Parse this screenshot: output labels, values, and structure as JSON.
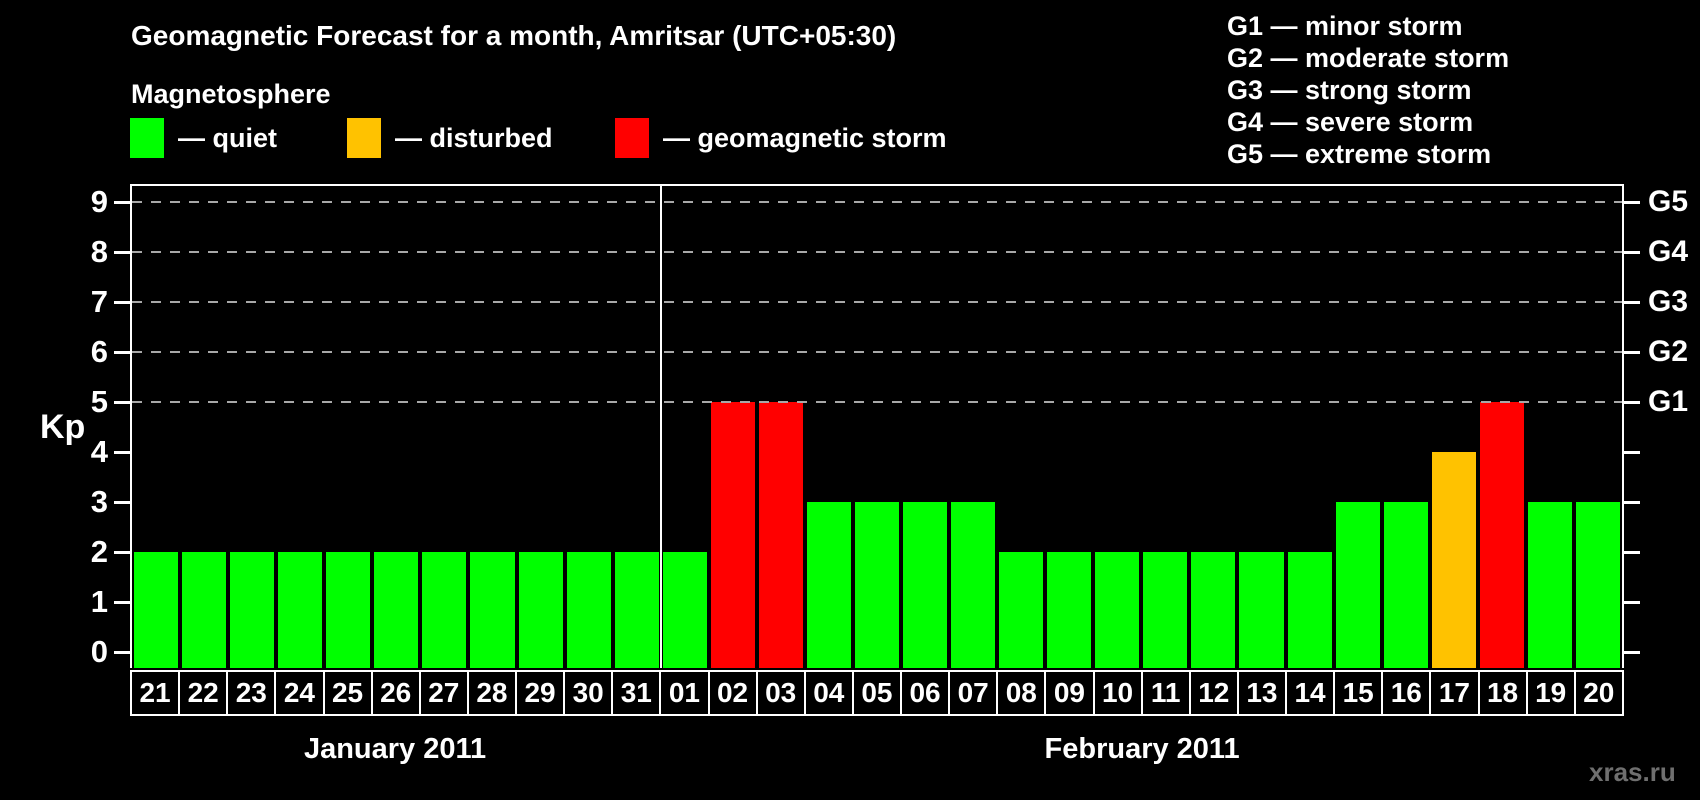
{
  "title": "Geomagnetic Forecast for a month, Amritsar (UTC+05:30)",
  "legend": {
    "heading": "Magnetosphere",
    "items": [
      {
        "label": "— quiet",
        "color": "#00ff00"
      },
      {
        "label": "— disturbed",
        "color": "#ffc200"
      },
      {
        "label": "— geomagnetic storm",
        "color": "#ff0000"
      }
    ]
  },
  "storm_legend": [
    "G1 — minor storm",
    "G2 — moderate storm",
    "G3 — strong storm",
    "G4 — severe storm",
    "G5 — extreme storm"
  ],
  "watermark": "xras.ru",
  "chart_data": {
    "type": "bar",
    "title": "Geomagnetic Forecast for a month, Amritsar (UTC+05:30)",
    "ylabel": "Kp",
    "ylim": [
      0,
      9
    ],
    "yticks": [
      0,
      1,
      2,
      3,
      4,
      5,
      6,
      7,
      8,
      9
    ],
    "gridlines": [
      5,
      6,
      7,
      8,
      9
    ],
    "grid": "dashed horizontal lines at Kp 5-9 only",
    "legend_position": "top",
    "right_axis": [
      {
        "kp": 5,
        "label": "G1"
      },
      {
        "kp": 6,
        "label": "G2"
      },
      {
        "kp": 7,
        "label": "G3"
      },
      {
        "kp": 8,
        "label": "G4"
      },
      {
        "kp": 9,
        "label": "G5"
      }
    ],
    "months": [
      {
        "label": "January 2011",
        "days": 11
      },
      {
        "label": "February 2011",
        "days": 20
      }
    ],
    "status_colors": {
      "quiet": "#00ff00",
      "disturbed": "#ffc200",
      "storm": "#ff0000"
    },
    "days": [
      {
        "day": "21",
        "kp": 2,
        "status": "quiet"
      },
      {
        "day": "22",
        "kp": 2,
        "status": "quiet"
      },
      {
        "day": "23",
        "kp": 2,
        "status": "quiet"
      },
      {
        "day": "24",
        "kp": 2,
        "status": "quiet"
      },
      {
        "day": "25",
        "kp": 2,
        "status": "quiet"
      },
      {
        "day": "26",
        "kp": 2,
        "status": "quiet"
      },
      {
        "day": "27",
        "kp": 2,
        "status": "quiet"
      },
      {
        "day": "28",
        "kp": 2,
        "status": "quiet"
      },
      {
        "day": "29",
        "kp": 2,
        "status": "quiet"
      },
      {
        "day": "30",
        "kp": 2,
        "status": "quiet"
      },
      {
        "day": "31",
        "kp": 2,
        "status": "quiet"
      },
      {
        "day": "01",
        "kp": 2,
        "status": "quiet"
      },
      {
        "day": "02",
        "kp": 5,
        "status": "storm"
      },
      {
        "day": "03",
        "kp": 5,
        "status": "storm"
      },
      {
        "day": "04",
        "kp": 3,
        "status": "quiet"
      },
      {
        "day": "05",
        "kp": 3,
        "status": "quiet"
      },
      {
        "day": "06",
        "kp": 3,
        "status": "quiet"
      },
      {
        "day": "07",
        "kp": 3,
        "status": "quiet"
      },
      {
        "day": "08",
        "kp": 2,
        "status": "quiet"
      },
      {
        "day": "09",
        "kp": 2,
        "status": "quiet"
      },
      {
        "day": "10",
        "kp": 2,
        "status": "quiet"
      },
      {
        "day": "11",
        "kp": 2,
        "status": "quiet"
      },
      {
        "day": "12",
        "kp": 2,
        "status": "quiet"
      },
      {
        "day": "13",
        "kp": 2,
        "status": "quiet"
      },
      {
        "day": "14",
        "kp": 2,
        "status": "quiet"
      },
      {
        "day": "15",
        "kp": 3,
        "status": "quiet"
      },
      {
        "day": "16",
        "kp": 3,
        "status": "quiet"
      },
      {
        "day": "17",
        "kp": 4,
        "status": "disturbed"
      },
      {
        "day": "18",
        "kp": 5,
        "status": "storm"
      },
      {
        "day": "19",
        "kp": 3,
        "status": "quiet"
      },
      {
        "day": "20",
        "kp": 3,
        "status": "quiet"
      }
    ]
  }
}
